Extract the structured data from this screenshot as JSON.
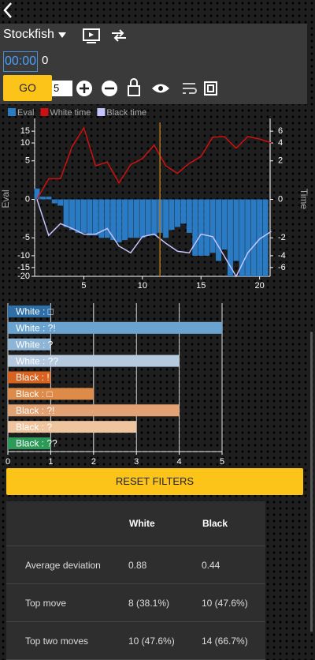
{
  "header": {
    "engine": "Stockfish",
    "clock": "00:00",
    "clock_extra": "0",
    "go": "GO",
    "depth": "5"
  },
  "chart_data": [
    {
      "type": "combo",
      "y_label": "Eval",
      "y2_label": "Time",
      "yscale": "symlog",
      "xlim": [
        0.8,
        20.9
      ],
      "xticks": [
        5,
        10,
        15,
        20
      ],
      "ylim": [
        -20,
        20
      ],
      "yticks": [
        15,
        10,
        5,
        0,
        -5,
        -10,
        -15,
        -20
      ],
      "y2lim": [
        -8,
        8
      ],
      "y2ticks": [
        6,
        4,
        2,
        0,
        -2,
        -4,
        -6
      ],
      "marker_x": 11.5,
      "marker_color": "#b07a20",
      "series": [
        {
          "name": "Eval",
          "color": "#2b7bc4",
          "kind": "bar",
          "x": [
            1,
            1.5,
            2,
            2.5,
            3,
            3.5,
            4,
            4.5,
            5,
            5.5,
            6,
            6.5,
            7,
            7.5,
            8,
            8.5,
            9,
            9.5,
            10,
            10.5,
            11,
            11.5,
            12,
            12.5,
            13,
            13.5,
            14,
            14.5,
            15,
            15.5,
            16,
            16.5,
            17,
            17.5,
            18,
            18.5,
            19,
            19.5,
            20,
            20.5
          ],
          "values": [
            0.9,
            0.2,
            0.2,
            -0.3,
            -0.5,
            -3,
            -3.5,
            -4,
            -4,
            -4.5,
            -4.5,
            -5,
            -5,
            -5.5,
            -6,
            -5.5,
            -5,
            -5,
            -5,
            -4.5,
            -4.5,
            -4,
            -5,
            -3.5,
            -3,
            -2.5,
            -4,
            -10,
            -10,
            -10,
            -9,
            -12,
            -8,
            -20,
            -12,
            -20,
            -20,
            -20,
            -20,
            -20
          ]
        },
        {
          "name": "White time",
          "color": "#d01010",
          "kind": "line",
          "axis": "y2",
          "x": [
            1,
            2,
            3,
            4,
            5,
            6,
            7,
            8,
            9,
            10,
            11,
            12,
            13,
            14,
            15,
            16,
            17,
            18,
            19,
            20,
            21
          ],
          "values": [
            0,
            0.8,
            0.8,
            3.5,
            6.7,
            1.6,
            1.9,
            0.6,
            1.7,
            2.2,
            3.7,
            1.6,
            1.1,
            1.8,
            2.4,
            4.9,
            5,
            3.3,
            5,
            4.6,
            4
          ]
        },
        {
          "name": "Black time",
          "color": "#c4c4ff",
          "kind": "line",
          "axis": "y2",
          "x": [
            1,
            2,
            3,
            4,
            5,
            6,
            7,
            8,
            9,
            10,
            11,
            12,
            13,
            14,
            15,
            16,
            17,
            18,
            19,
            20,
            21
          ],
          "values": [
            0,
            -1.8,
            -1,
            -1.3,
            -1.7,
            -1.7,
            -1.3,
            -2.8,
            -3.6,
            -1.9,
            -1.7,
            -2.5,
            -3.4,
            -3.6,
            -1.7,
            -1.9,
            -4.1,
            -8,
            -3.6,
            -2.1,
            -1.5
          ]
        }
      ]
    },
    {
      "type": "hbar",
      "grid": true,
      "categories": [
        "White : □",
        "White : ?!",
        "White : ?",
        "White : ??",
        "Black : !",
        "Black : □",
        "Black : ?!",
        "Black : ?",
        "Black : ??"
      ],
      "values": [
        1,
        5,
        1,
        4,
        1,
        2,
        4,
        3,
        1
      ],
      "colors": [
        "#2e6fa8",
        "#6aa3cf",
        "#8fb5d6",
        "#b5c9df",
        "#d8621e",
        "#de8a48",
        "#e3a273",
        "#efc59f",
        "#2c9a58"
      ],
      "xlim": [
        0,
        5
      ],
      "xticks": [
        0,
        1,
        2,
        3,
        4,
        5
      ]
    }
  ],
  "reset_button": "RESET FILTERS",
  "table": {
    "columns": [
      "White",
      "Black"
    ],
    "rows": [
      [
        "Average deviation",
        "0.88",
        "0.44"
      ],
      [
        "Top move",
        "8 (38.1%)",
        "10 (47.6%)"
      ],
      [
        "Top two moves",
        "10 (47.6%)",
        "14 (66.7%)"
      ]
    ]
  }
}
